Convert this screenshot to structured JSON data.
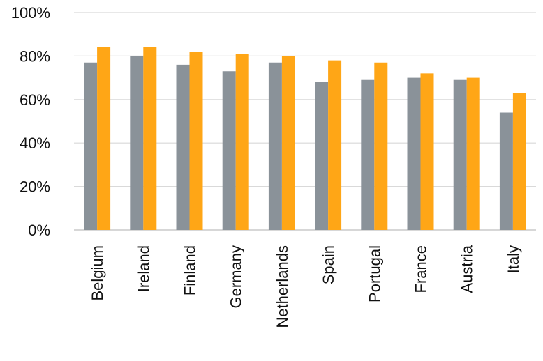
{
  "chart_data": {
    "type": "bar",
    "categories": [
      "Belgium",
      "Ireland",
      "Finland",
      "Germany",
      "Netherlands",
      "Spain",
      "Portugal",
      "France",
      "Austria",
      "Italy"
    ],
    "series": [
      {
        "values": [
          77,
          80,
          76,
          73,
          77,
          68,
          69,
          70,
          69,
          54
        ],
        "color": "#8a9299"
      },
      {
        "values": [
          84,
          84,
          82,
          81,
          80,
          78,
          77,
          72,
          70,
          63
        ],
        "color": "#ffa616"
      }
    ],
    "yticks": [
      "0%",
      "20%",
      "40%",
      "60%",
      "80%",
      "100%"
    ],
    "ylim": [
      0,
      100
    ],
    "title": "",
    "xlabel": "",
    "ylabel": "",
    "grid": true,
    "legend": "none"
  }
}
